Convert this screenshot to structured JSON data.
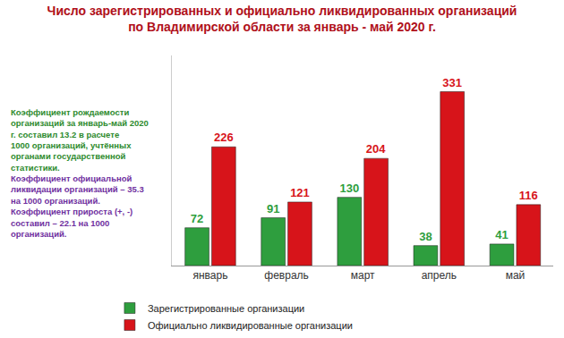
{
  "chart_data": {
    "type": "bar",
    "title": "Число зарегистрированных и официально ликвидированных организаций по Владимирской области за январь - май 2020 г.",
    "categories": [
      "январь",
      "февраль",
      "март",
      "апрель",
      "май"
    ],
    "series": [
      {
        "name": "Зарегистрированные организации",
        "color": "#2e9e3e",
        "values": [
          72,
          91,
          130,
          38,
          41
        ]
      },
      {
        "name": "Официально ликвидированные организации",
        "color": "#d7141a",
        "values": [
          226,
          121,
          204,
          331,
          116
        ]
      }
    ],
    "ylim": [
      0,
      400
    ],
    "grid": false,
    "legend": "bottom",
    "data_labels": true,
    "tick_labels": "x",
    "annotations": [
      "Коэффициент рождаемости организаций за январь-май 2020 г. составил 13.2 в расчете 1000 организаций, учтённых органами государственной статистики.",
      "Коэффициент официальной ликвидации организаций – 35.3 на 1000 организаций.",
      "Коэффициент прироста (+, -) составил – 22.1 на 1000 организаций."
    ]
  }
}
